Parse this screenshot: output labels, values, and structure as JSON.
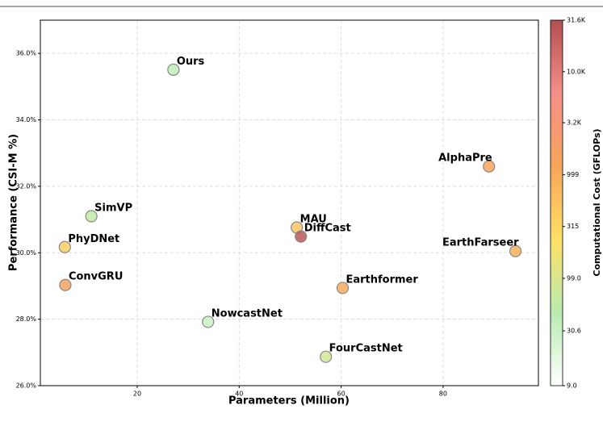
{
  "chart_data": {
    "type": "scatter",
    "xlabel": "Parameters (Million)",
    "ylabel": "Performance (CSI-M %)",
    "colorbar_label": "Computational Cost (GFLOPs)",
    "xlim": [
      1,
      98.7
    ],
    "xticks": [
      20,
      40,
      60,
      80
    ],
    "ylim": [
      26,
      37
    ],
    "yticks": [
      {
        "value": 26,
        "label": "26.0%"
      },
      {
        "value": 28,
        "label": "28.0%"
      },
      {
        "value": 30,
        "label": "30.0%"
      },
      {
        "value": 32,
        "label": "32.0%"
      },
      {
        "value": 34,
        "label": "34.0%"
      },
      {
        "value": 36,
        "label": "36.0%"
      }
    ],
    "grid": true,
    "colorbar_scale": "log",
    "clim": [
      9,
      31600
    ],
    "cticks": [
      {
        "value": 9,
        "label": "9.0"
      },
      30.6,
      {
        "value": 99,
        "label": "99.0"
      },
      315,
      999,
      {
        "value": 3200,
        "label": "3.2K"
      },
      {
        "value": 10000,
        "label": "10.0K"
      },
      {
        "value": 31600,
        "label": "31.6K"
      }
    ],
    "colormap": [
      "#ffffff",
      "#b8ecb0",
      "#ffe066",
      "#f7a55c",
      "#f59088",
      "#b05050"
    ],
    "points": [
      {
        "name": "Ours",
        "x": 27.1,
        "y": 35.51,
        "gflops": 40
      },
      {
        "name": "SimVP",
        "x": 11.0,
        "y": 31.1,
        "gflops": 60
      },
      {
        "name": "PhyDNet",
        "x": 5.8,
        "y": 30.17,
        "gflops": 400
      },
      {
        "name": "ConvGRU",
        "x": 5.9,
        "y": 29.03,
        "gflops": 1500
      },
      {
        "name": "NowcastNet",
        "x": 33.9,
        "y": 27.92,
        "gflops": 30
      },
      {
        "name": "MAU",
        "x": 51.3,
        "y": 30.76,
        "gflops": 500
      },
      {
        "name": "DiffCast",
        "x": 52.1,
        "y": 30.49,
        "gflops": 25000
      },
      {
        "name": "FourCastNet",
        "x": 57.0,
        "y": 26.87,
        "gflops": 80
      },
      {
        "name": "Earthformer",
        "x": 60.3,
        "y": 28.94,
        "gflops": 1000
      },
      {
        "name": "AlphaPre",
        "x": 89.0,
        "y": 32.6,
        "gflops": 1200
      },
      {
        "name": "EarthFarseer",
        "x": 94.2,
        "y": 30.05,
        "gflops": 900
      }
    ]
  }
}
